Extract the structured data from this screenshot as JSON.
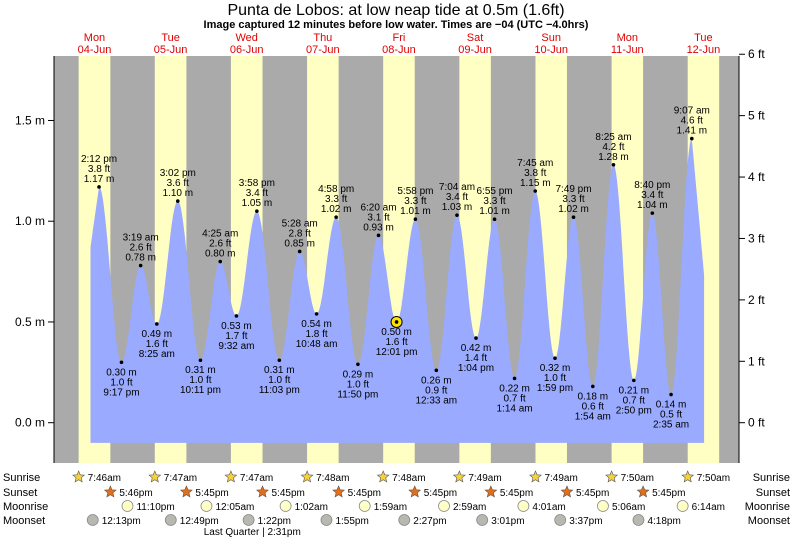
{
  "chart_data": {
    "type": "area",
    "title": "Punta de Lobos: at low  neap tide at 0.5m (1.6ft)",
    "subtitle": "Image captured 12 minutes before low water. Times are −04 (UTC −4.0hrs)",
    "days": [
      {
        "name": "Mon",
        "date": "04-Jun"
      },
      {
        "name": "Tue",
        "date": "05-Jun"
      },
      {
        "name": "Wed",
        "date": "06-Jun"
      },
      {
        "name": "Thu",
        "date": "07-Jun"
      },
      {
        "name": "Fri",
        "date": "08-Jun"
      },
      {
        "name": "Sat",
        "date": "09-Jun"
      },
      {
        "name": "Sun",
        "date": "10-Jun"
      },
      {
        "name": "Mon",
        "date": "11-Jun"
      },
      {
        "name": "Tue",
        "date": "12-Jun"
      }
    ],
    "y_left_ticks": [
      "1.5 m",
      "1.0 m",
      "0.5 m",
      "0.0 m"
    ],
    "y_right_ticks": [
      "6 ft",
      "5 ft",
      "4 ft",
      "3 ft",
      "2 ft",
      "1 ft",
      "0 ft"
    ],
    "extremes": [
      {
        "time": "2:12 pm",
        "ft": "3.8 ft",
        "m": "1.17 m",
        "value": 1.17,
        "type": "high",
        "hours": 14.2
      },
      {
        "time": "9:17 pm",
        "ft": "1.0 ft",
        "m": "0.30 m",
        "value": 0.3,
        "type": "low",
        "hours": 21.28
      },
      {
        "time": "3:19 am",
        "ft": "2.6 ft",
        "m": "0.78 m",
        "value": 0.78,
        "type": "high",
        "hours": 27.32
      },
      {
        "time": "8:25 am",
        "ft": "1.6 ft",
        "m": "0.49 m",
        "value": 0.49,
        "type": "low",
        "hours": 32.42
      },
      {
        "time": "3:02 pm",
        "ft": "3.6 ft",
        "m": "1.10 m",
        "value": 1.1,
        "type": "high",
        "hours": 39.03
      },
      {
        "time": "10:11 pm",
        "ft": "1.0 ft",
        "m": "0.31 m",
        "value": 0.31,
        "type": "low",
        "hours": 46.18
      },
      {
        "time": "4:25 am",
        "ft": "2.6 ft",
        "m": "0.80 m",
        "value": 0.8,
        "type": "high",
        "hours": 52.42
      },
      {
        "time": "9:32 am",
        "ft": "1.7 ft",
        "m": "0.53 m",
        "value": 0.53,
        "type": "low",
        "hours": 57.53
      },
      {
        "time": "3:58 pm",
        "ft": "3.4 ft",
        "m": "1.05 m",
        "value": 1.05,
        "type": "high",
        "hours": 63.97
      },
      {
        "time": "11:03 pm",
        "ft": "1.0 ft",
        "m": "0.31 m",
        "value": 0.31,
        "type": "low",
        "hours": 71.05
      },
      {
        "time": "5:28 am",
        "ft": "2.8 ft",
        "m": "0.85 m",
        "value": 0.85,
        "type": "high",
        "hours": 77.47
      },
      {
        "time": "10:48 am",
        "ft": "1.8 ft",
        "m": "0.54 m",
        "value": 0.54,
        "type": "low",
        "hours": 82.8
      },
      {
        "time": "4:58 pm",
        "ft": "3.3 ft",
        "m": "1.02 m",
        "value": 1.02,
        "type": "high",
        "hours": 88.97
      },
      {
        "time": "11:50 pm",
        "ft": "1.0 ft",
        "m": "0.29 m",
        "value": 0.29,
        "type": "low",
        "hours": 95.83
      },
      {
        "time": "6:20 am",
        "ft": "3.1 ft",
        "m": "0.93 m",
        "value": 0.93,
        "type": "high",
        "hours": 102.33
      },
      {
        "time": "12:01 pm",
        "ft": "1.6 ft",
        "m": "0.50 m",
        "value": 0.5,
        "type": "low",
        "hours": 108.02,
        "current": true
      },
      {
        "time": "5:58 pm",
        "ft": "3.3 ft",
        "m": "1.01 m",
        "value": 1.01,
        "type": "high",
        "hours": 113.97
      },
      {
        "time": "12:33 am",
        "ft": "0.9 ft",
        "m": "0.26 m",
        "value": 0.26,
        "type": "low",
        "hours": 120.55
      },
      {
        "time": "7:04 am",
        "ft": "3.4 ft",
        "m": "1.03 m",
        "value": 1.03,
        "type": "high",
        "hours": 127.07
      },
      {
        "time": "1:04 pm",
        "ft": "1.4 ft",
        "m": "0.42 m",
        "value": 0.42,
        "type": "low",
        "hours": 133.07
      },
      {
        "time": "6:55 pm",
        "ft": "3.3 ft",
        "m": "1.01 m",
        "value": 1.01,
        "type": "high",
        "hours": 138.92
      },
      {
        "time": "1:14 am",
        "ft": "0.7 ft",
        "m": "0.22 m",
        "value": 0.22,
        "type": "low",
        "hours": 145.23
      },
      {
        "time": "7:45 am",
        "ft": "3.8 ft",
        "m": "1.15 m",
        "value": 1.15,
        "type": "high",
        "hours": 151.75
      },
      {
        "time": "1:59 pm",
        "ft": "1.0 ft",
        "m": "0.32 m",
        "value": 0.32,
        "type": "low",
        "hours": 157.98
      },
      {
        "time": "7:49 pm",
        "ft": "3.3 ft",
        "m": "1.02 m",
        "value": 1.02,
        "type": "high",
        "hours": 163.82
      },
      {
        "time": "1:54 am",
        "ft": "0.6 ft",
        "m": "0.18 m",
        "value": 0.18,
        "type": "low",
        "hours": 169.9
      },
      {
        "time": "8:25 am",
        "ft": "4.2 ft",
        "m": "1.28 m",
        "value": 1.28,
        "type": "high",
        "hours": 176.42
      },
      {
        "time": "2:50 pm",
        "ft": "0.7 ft",
        "m": "0.21 m",
        "value": 0.21,
        "type": "low",
        "hours": 182.83
      },
      {
        "time": "8:40 pm",
        "ft": "3.4 ft",
        "m": "1.04 m",
        "value": 1.04,
        "type": "high",
        "hours": 188.67
      },
      {
        "time": "2:35 am",
        "ft": "0.5 ft",
        "m": "0.14 m",
        "value": 0.14,
        "type": "low",
        "hours": 194.58
      },
      {
        "time": "9:07 am",
        "ft": "4.6 ft",
        "m": "1.41 m",
        "value": 1.41,
        "type": "high",
        "hours": 201.12
      }
    ],
    "ylim_m": [
      -0.2,
      1.82
    ],
    "hours_range": [
      0,
      216
    ],
    "plot_hours_range": [
      11.5,
      205
    ],
    "daylight": [
      {
        "rise": 7.77,
        "set": 17.77
      },
      {
        "rise": 7.78,
        "set": 17.75
      },
      {
        "rise": 7.78,
        "set": 17.75
      },
      {
        "rise": 7.8,
        "set": 17.75
      },
      {
        "rise": 7.8,
        "set": 17.75
      },
      {
        "rise": 7.82,
        "set": 17.75
      },
      {
        "rise": 7.82,
        "set": 17.75
      },
      {
        "rise": 7.83,
        "set": 17.75
      },
      {
        "rise": 7.83,
        "set": 17.75
      }
    ],
    "rows": {
      "labels": [
        "Sunrise",
        "Sunset",
        "Moonrise",
        "Moonset"
      ],
      "sunrise": [
        {
          "text": "7:46am",
          "hours": 7.77
        },
        {
          "text": "7:47am",
          "hours": 31.78
        },
        {
          "text": "7:47am",
          "hours": 55.78
        },
        {
          "text": "7:48am",
          "hours": 79.8
        },
        {
          "text": "7:48am",
          "hours": 103.8
        },
        {
          "text": "7:49am",
          "hours": 127.82
        },
        {
          "text": "7:49am",
          "hours": 151.82
        },
        {
          "text": "7:50am",
          "hours": 175.83
        },
        {
          "text": "7:50am",
          "hours": 199.83
        }
      ],
      "sunset": [
        {
          "text": "5:46pm",
          "hours": 17.77
        },
        {
          "text": "5:45pm",
          "hours": 41.75
        },
        {
          "text": "5:45pm",
          "hours": 65.75
        },
        {
          "text": "5:45pm",
          "hours": 89.75
        },
        {
          "text": "5:45pm",
          "hours": 113.75
        },
        {
          "text": "5:45pm",
          "hours": 137.75
        },
        {
          "text": "5:45pm",
          "hours": 161.75
        },
        {
          "text": "5:45pm",
          "hours": 185.75
        }
      ],
      "moonrise": [
        {
          "text": "11:10pm",
          "hours": 23.17
        },
        {
          "text": "12:05am",
          "hours": 48.08
        },
        {
          "text": "1:02am",
          "hours": 73.03
        },
        {
          "text": "1:59am",
          "hours": 97.98
        },
        {
          "text": "2:59am",
          "hours": 122.98
        },
        {
          "text": "4:01am",
          "hours": 148.02
        },
        {
          "text": "5:06am",
          "hours": 173.1
        },
        {
          "text": "6:14am",
          "hours": 198.23
        }
      ],
      "moonset": [
        {
          "text": "12:13pm",
          "hours": 12.22
        },
        {
          "text": "12:49pm",
          "hours": 36.82
        },
        {
          "text": "1:22pm",
          "hours": 61.37
        },
        {
          "text": "1:55pm",
          "hours": 85.92
        },
        {
          "text": "2:27pm",
          "hours": 110.45
        },
        {
          "text": "3:01pm",
          "hours": 135.02
        },
        {
          "text": "3:37pm",
          "hours": 159.62
        },
        {
          "text": "4:18pm",
          "hours": 184.3
        }
      ]
    },
    "moon_phase": {
      "text": "Last Quarter | 2:31pm",
      "hours": 62.52
    },
    "colors": {
      "water": "#99aaff",
      "day": "#ffffc4",
      "night": "#aaaaaa",
      "day_label": "#e00000",
      "sun_star": "#f5d23c",
      "sunset_star": "#e0701c",
      "moonrise": "#ffffc8",
      "moonset": "#b8b8b0"
    }
  }
}
